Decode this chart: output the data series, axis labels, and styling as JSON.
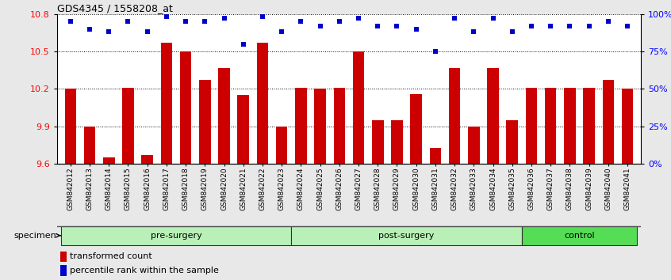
{
  "title": "GDS4345 / 1558208_at",
  "samples": [
    "GSM842012",
    "GSM842013",
    "GSM842014",
    "GSM842015",
    "GSM842016",
    "GSM842017",
    "GSM842018",
    "GSM842019",
    "GSM842020",
    "GSM842021",
    "GSM842022",
    "GSM842023",
    "GSM842024",
    "GSM842025",
    "GSM842026",
    "GSM842027",
    "GSM842028",
    "GSM842029",
    "GSM842030",
    "GSM842031",
    "GSM842032",
    "GSM842033",
    "GSM842034",
    "GSM842035",
    "GSM842036",
    "GSM842037",
    "GSM842038",
    "GSM842039",
    "GSM842040",
    "GSM842041"
  ],
  "bar_values": [
    10.2,
    9.9,
    9.65,
    10.21,
    9.67,
    10.57,
    10.5,
    10.27,
    10.37,
    10.15,
    10.57,
    9.9,
    10.21,
    10.2,
    10.21,
    10.5,
    9.95,
    9.95,
    10.16,
    9.73,
    10.37,
    9.9,
    10.37,
    9.95,
    10.21,
    10.21,
    10.21,
    10.21,
    10.27,
    10.2
  ],
  "percentile_values": [
    95,
    90,
    88,
    95,
    88,
    98,
    95,
    95,
    97,
    80,
    98,
    88,
    95,
    92,
    95,
    97,
    92,
    92,
    90,
    75,
    97,
    88,
    97,
    88,
    92,
    92,
    92,
    92,
    95,
    92
  ],
  "groups": [
    {
      "label": "pre-surgery",
      "start": 0,
      "end": 12
    },
    {
      "label": "post-surgery",
      "start": 12,
      "end": 24
    },
    {
      "label": "control",
      "start": 24,
      "end": 30
    }
  ],
  "group_colors": [
    "#b8f0b8",
    "#b8f0b8",
    "#55dd55"
  ],
  "bar_color": "#CC0000",
  "dot_color": "#0000CC",
  "bar_bottom": 9.6,
  "ylim_left": [
    9.6,
    10.8
  ],
  "ylim_right": [
    0,
    100
  ],
  "yticks_left": [
    9.6,
    9.9,
    10.2,
    10.5,
    10.8
  ],
  "yticks_right": [
    0,
    25,
    50,
    75,
    100
  ],
  "grid_values": [
    9.9,
    10.2,
    10.5,
    10.8
  ],
  "specimen_label": "specimen",
  "legend_bar_label": "transformed count",
  "legend_dot_label": "percentile rank within the sample",
  "background_color": "#e8e8e8",
  "plot_bg_color": "#ffffff"
}
